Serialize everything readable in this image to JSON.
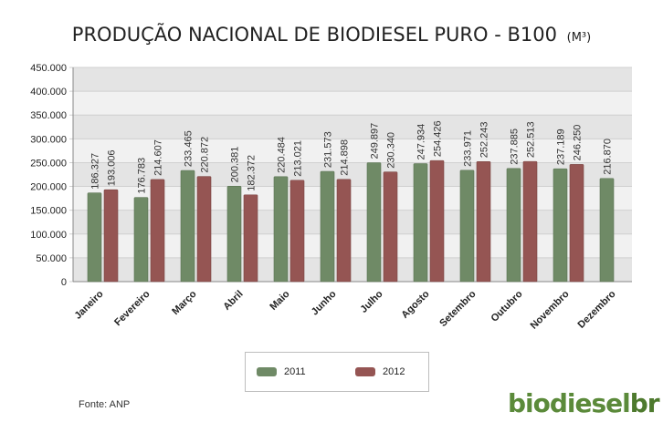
{
  "chart_data": {
    "type": "bar",
    "title": "PRODUÇÃO NACIONAL DE BIODIESEL PURO - B100",
    "unit": "(M³)",
    "categories": [
      "Janeiro",
      "Fevereiro",
      "Março",
      "Abril",
      "Maio",
      "Junho",
      "Julho",
      "Agosto",
      "Setembro",
      "Outubro",
      "Novembro",
      "Dezembro"
    ],
    "series": [
      {
        "name": "2011",
        "color": "#6f8a66",
        "values": [
          186327,
          176783,
          233465,
          200381,
          220484,
          231573,
          249897,
          247934,
          233971,
          237885,
          237189,
          216870
        ],
        "labels": [
          "186.327",
          "176.783",
          "233.465",
          "200.381",
          "220.484",
          "231.573",
          "249.897",
          "247.934",
          "233.971",
          "237.885",
          "237.189",
          "216.870"
        ]
      },
      {
        "name": "2012",
        "color": "#955553",
        "values": [
          193006,
          214607,
          220872,
          182372,
          213021,
          214898,
          230340,
          254426,
          252243,
          252513,
          246250,
          null
        ],
        "labels": [
          "193.006",
          "214.607",
          "220.872",
          "182.372",
          "213.021",
          "214.898",
          "230.340",
          "254.426",
          "252.243",
          "252.513",
          "246.250",
          null
        ]
      }
    ],
    "ylim": [
      0,
      450000
    ],
    "yticks": [
      0,
      50000,
      100000,
      150000,
      200000,
      250000,
      300000,
      350000,
      400000,
      450000
    ],
    "ytick_labels": [
      "0",
      "50.000",
      "100.000",
      "150.000",
      "200.000",
      "250.000",
      "300.000",
      "350.000",
      "400.000",
      "450.000"
    ],
    "legend_position": "bottom"
  },
  "legend": {
    "item1": "2011",
    "item2": "2012"
  },
  "source": "Fonte: ANP",
  "logo": {
    "part1": "biodiesel",
    "part2": "br"
  }
}
